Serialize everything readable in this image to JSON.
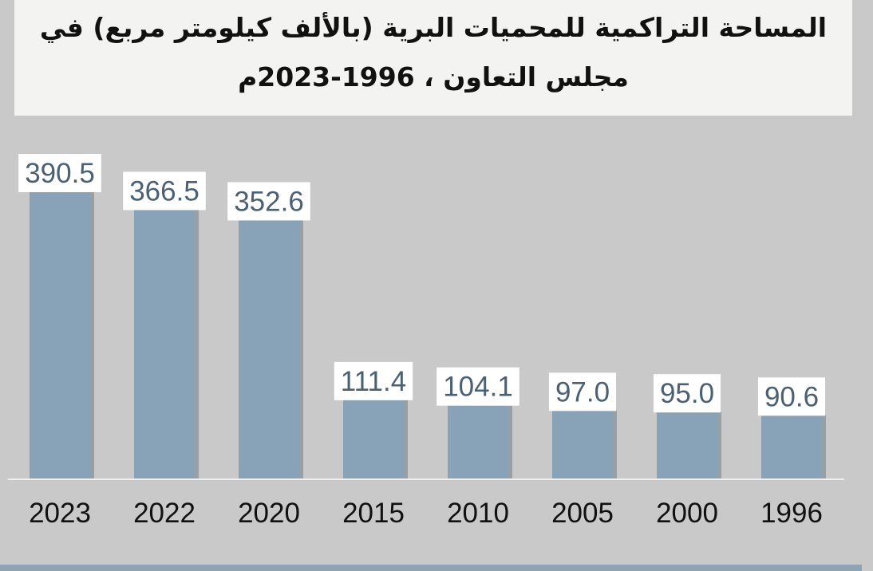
{
  "title": {
    "line1": "المساحة التراكمية للمحميات البرية (بالألف كيلومتر مربع) في",
    "line2": "مجلس التعاون ، 1996-2023م"
  },
  "colors": {
    "bar": "#88a3b7",
    "bar_shadow": "#6f7e88",
    "background": "#c9c9c9",
    "title_bg": "#f3f3f1",
    "value_text": "#4b6073",
    "baseline": "#eeeeee"
  },
  "chart_data": {
    "type": "bar",
    "categories": [
      "2023",
      "2022",
      "2020",
      "2015",
      "2010",
      "2005",
      "2000",
      "1996"
    ],
    "values": [
      390.5,
      366.5,
      352.6,
      111.4,
      104.1,
      97.0,
      95.0,
      90.6
    ],
    "value_labels": [
      "390.5",
      "366.5",
      "352.6",
      "111.4",
      "104.1",
      "97.0",
      "95.0",
      "90.6"
    ],
    "title": "المساحة التراكمية للمحميات البرية (بالألف كيلومتر مربع) في مجلس التعاون ، 1996-2023م",
    "xlabel": "",
    "ylabel": "",
    "ylim": [
      0,
      400
    ],
    "grid": false,
    "legend": "none"
  }
}
